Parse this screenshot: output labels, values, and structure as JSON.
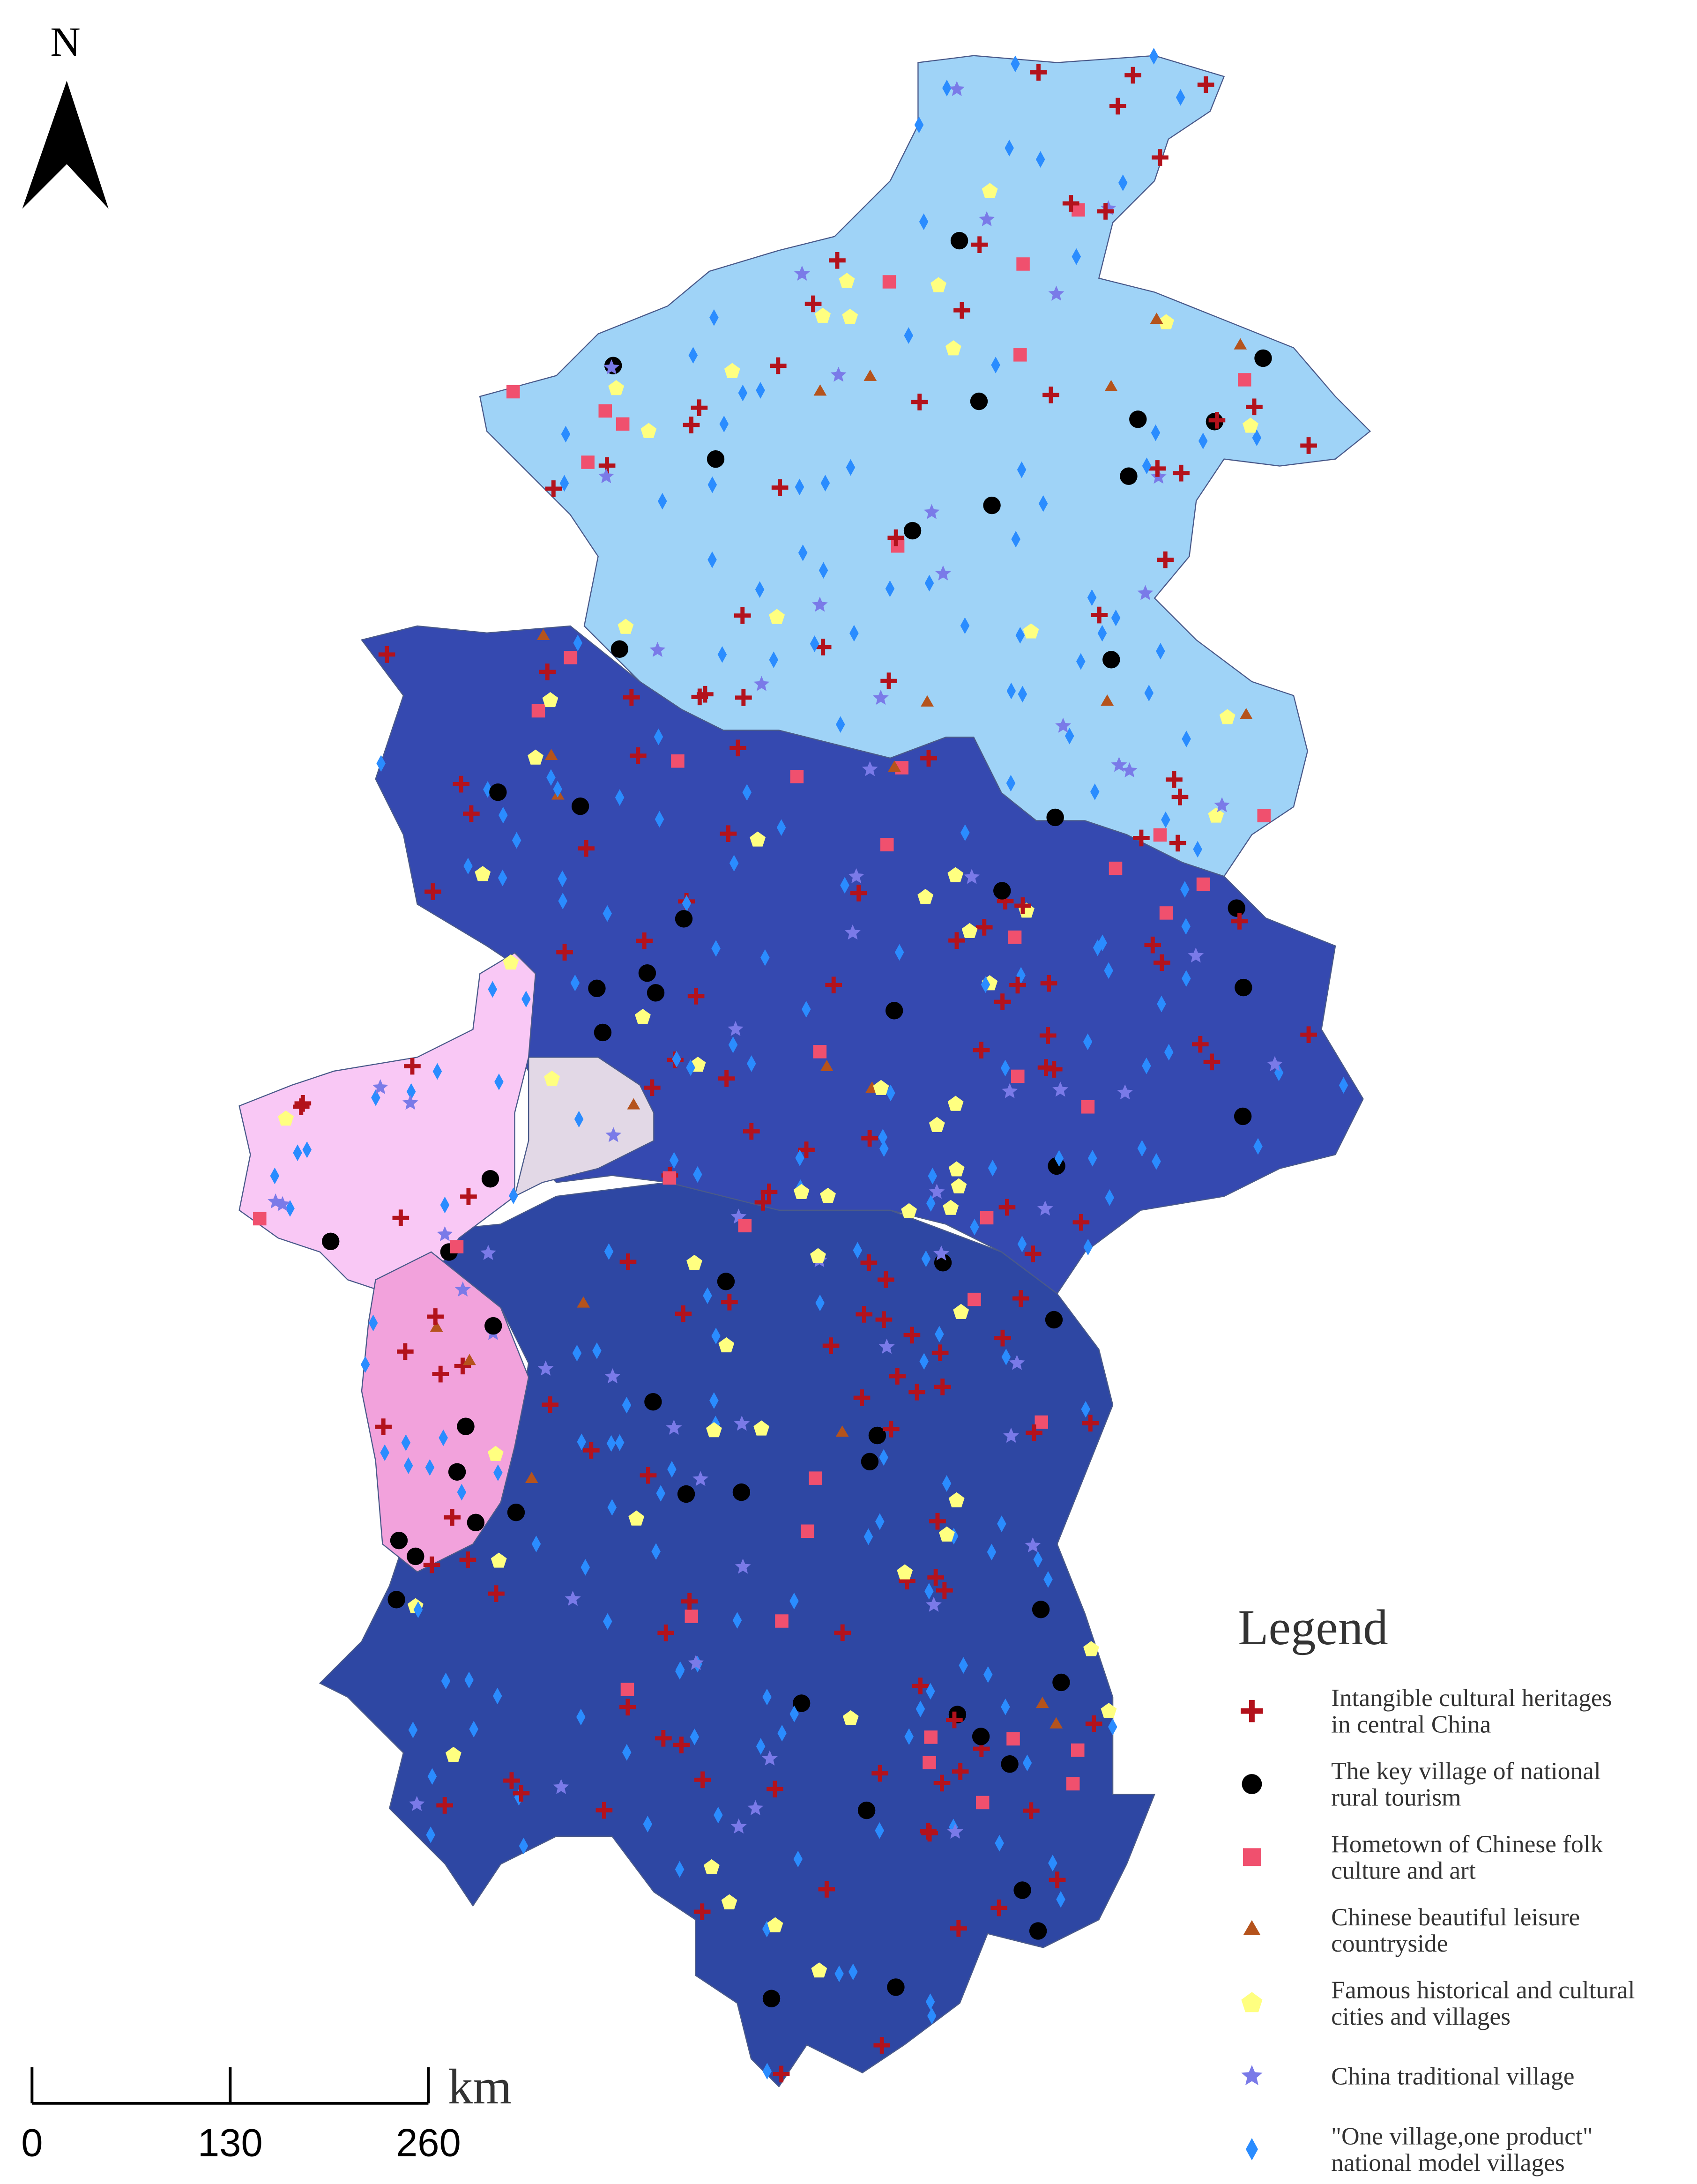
{
  "north": "N",
  "legend": {
    "title": "Legend",
    "items": [
      {
        "symbol": "cross",
        "color": "#b3121c",
        "lines": [
          "Intangible cultural heritages",
          "in central China"
        ]
      },
      {
        "symbol": "circle",
        "color": "#000000",
        "lines": [
          "The key village of national",
          "rural tourism"
        ]
      },
      {
        "symbol": "square",
        "color": "#f0506e",
        "lines": [
          "Hometown of Chinese folk",
          "culture and art"
        ]
      },
      {
        "symbol": "triangle",
        "color": "#b5531c",
        "lines": [
          "Chinese beautiful leisure",
          "countryside"
        ]
      },
      {
        "symbol": "pentagon",
        "color": "#ffff80",
        "lines": [
          "Famous historical and cultural",
          "cities and villages"
        ]
      },
      {
        "symbol": "star",
        "color": "#7a7ae8",
        "lines": [
          "China traditional village"
        ]
      },
      {
        "symbol": "diamond",
        "color": "#2a8cff",
        "lines": [
          "\"One village,one product\"",
          "national model villages"
        ]
      }
    ]
  },
  "scale_bar": {
    "unit": "km",
    "ticks": [
      0,
      130,
      260
    ]
  }
}
